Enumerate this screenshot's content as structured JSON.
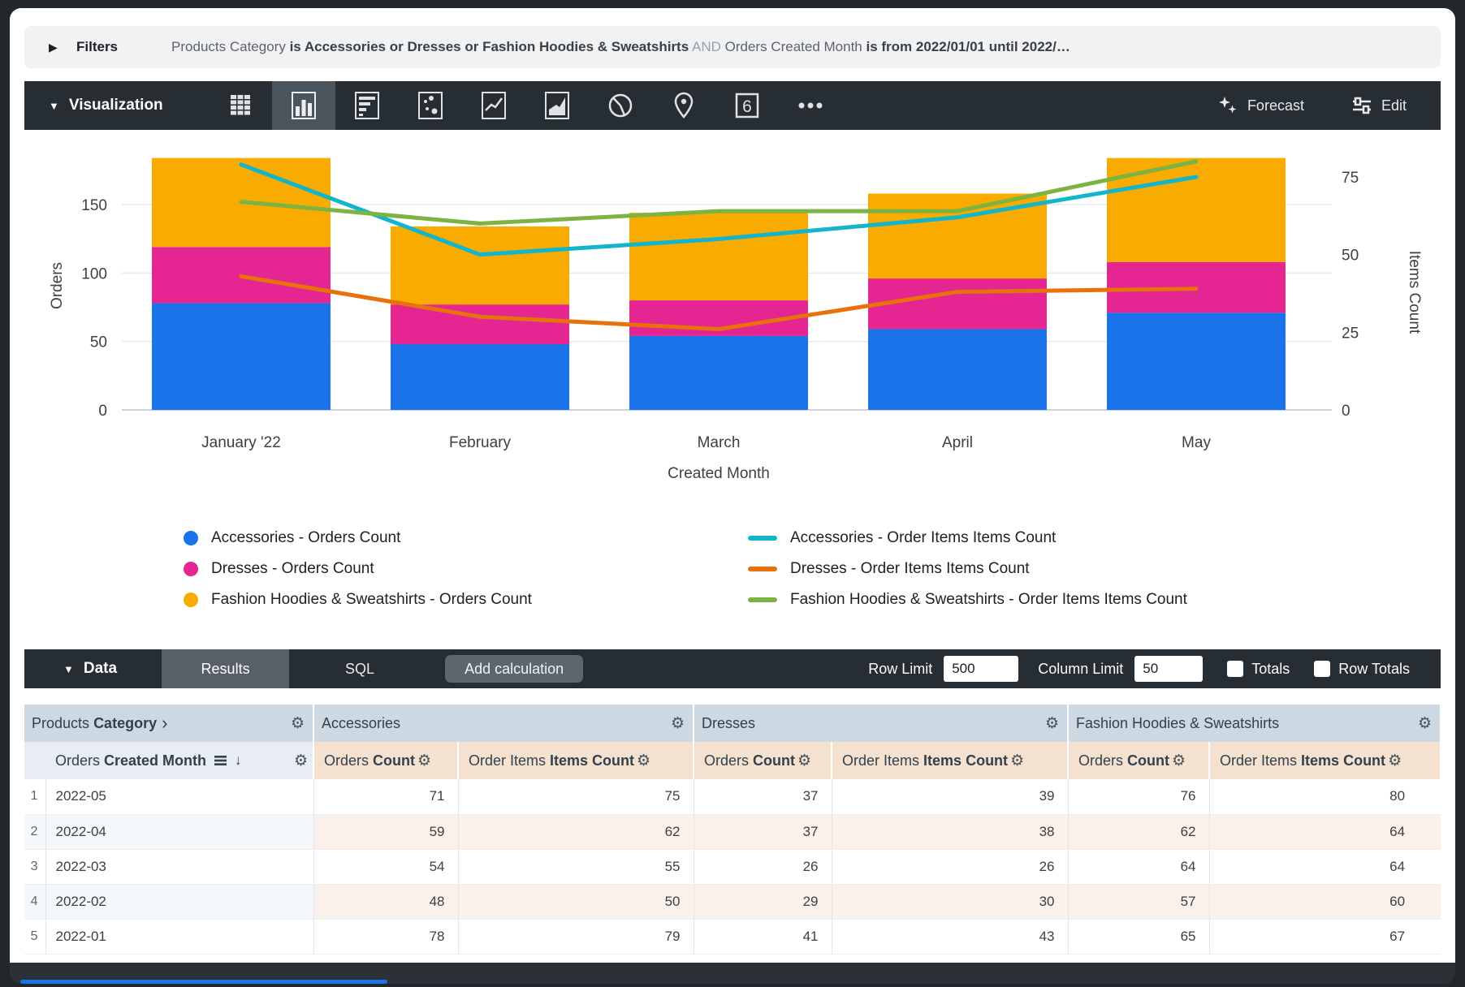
{
  "filters_bar": {
    "label": "Filters",
    "segment1_field": "Products Category",
    "segment1_condition": "is Accessories or Dresses or Fashion Hoodies & Sweatshirts",
    "conjunction": "AND",
    "segment2_field": "Orders Created Month",
    "segment2_condition": "is from 2022/01/01 until 2022/…"
  },
  "viz_toolbar": {
    "title": "Visualization",
    "icons": [
      "table-icon",
      "column-chart-icon",
      "bar-chart-icon",
      "scatter-icon",
      "line-chart-icon",
      "area-chart-icon",
      "pie-chart-icon",
      "map-pin-icon",
      "single-value-icon",
      "more-icon"
    ],
    "selected_icon": "column-chart-icon",
    "single_value_glyph": "6",
    "forecast_label": "Forecast",
    "edit_label": "Edit"
  },
  "chart_data": {
    "type": "combo",
    "categories": [
      "January '22",
      "February",
      "March",
      "April",
      "May"
    ],
    "x_axis_title": "Created Month",
    "left_axis": {
      "title": "Orders",
      "ticks": [
        0,
        50,
        100,
        150
      ],
      "max": 150
    },
    "right_axis": {
      "title": "Items Count",
      "ticks": [
        0,
        25,
        50,
        75
      ],
      "max": 75
    },
    "bar_series": [
      {
        "name": "Accessories - Orders Count",
        "color": "#1a73e8",
        "values": [
          78,
          48,
          54,
          59,
          71
        ]
      },
      {
        "name": "Dresses - Orders Count",
        "color": "#e52592",
        "values": [
          41,
          29,
          26,
          37,
          37
        ]
      },
      {
        "name": "Fashion Hoodies & Sweatshirts - Orders Count",
        "color": "#f9ab00",
        "values": [
          65,
          57,
          64,
          62,
          76
        ]
      }
    ],
    "line_series": [
      {
        "name": "Accessories - Order Items Items Count",
        "color": "#12b5cb",
        "values": [
          79,
          50,
          55,
          62,
          75
        ]
      },
      {
        "name": "Dresses - Order Items Items Count",
        "color": "#e8710a",
        "values": [
          43,
          30,
          26,
          38,
          39
        ]
      },
      {
        "name": "Fashion Hoodies & Sweatshirts - Order Items Items Count",
        "color": "#7cb342",
        "values": [
          67,
          60,
          64,
          64,
          80
        ]
      }
    ],
    "grid": true,
    "legend_position": "bottom"
  },
  "data_bar": {
    "title": "Data",
    "tabs": [
      "Results",
      "SQL"
    ],
    "active_tab": "Results",
    "add_calculation_label": "Add calculation",
    "row_limit_label": "Row Limit",
    "row_limit_value": "500",
    "column_limit_label": "Column Limit",
    "column_limit_value": "50",
    "totals_label": "Totals",
    "row_totals_label": "Row Totals"
  },
  "results_table": {
    "group_headers": {
      "dimension": {
        "plain": "Products",
        "bold": "Category",
        "chevron": "›"
      },
      "group1": "Accessories",
      "group2": "Dresses",
      "group3": "Fashion Hoodies & Sweatshirts"
    },
    "column_headers": {
      "dimension": {
        "plain": "Orders",
        "bold": "Created Month"
      },
      "orders_count": {
        "plain": "Orders",
        "bold": "Count"
      },
      "order_items_count": {
        "plain": "Order Items",
        "bold": "Items Count"
      }
    },
    "rows": [
      {
        "num": "1",
        "month": "2022-05",
        "values": [
          "71",
          "75",
          "37",
          "39",
          "76",
          "80"
        ]
      },
      {
        "num": "2",
        "month": "2022-04",
        "values": [
          "59",
          "62",
          "37",
          "38",
          "62",
          "64"
        ]
      },
      {
        "num": "3",
        "month": "2022-03",
        "values": [
          "54",
          "55",
          "26",
          "26",
          "64",
          "64"
        ]
      },
      {
        "num": "4",
        "month": "2022-02",
        "values": [
          "48",
          "50",
          "29",
          "30",
          "57",
          "60"
        ]
      },
      {
        "num": "5",
        "month": "2022-01",
        "values": [
          "78",
          "79",
          "41",
          "43",
          "65",
          "67"
        ]
      }
    ]
  }
}
